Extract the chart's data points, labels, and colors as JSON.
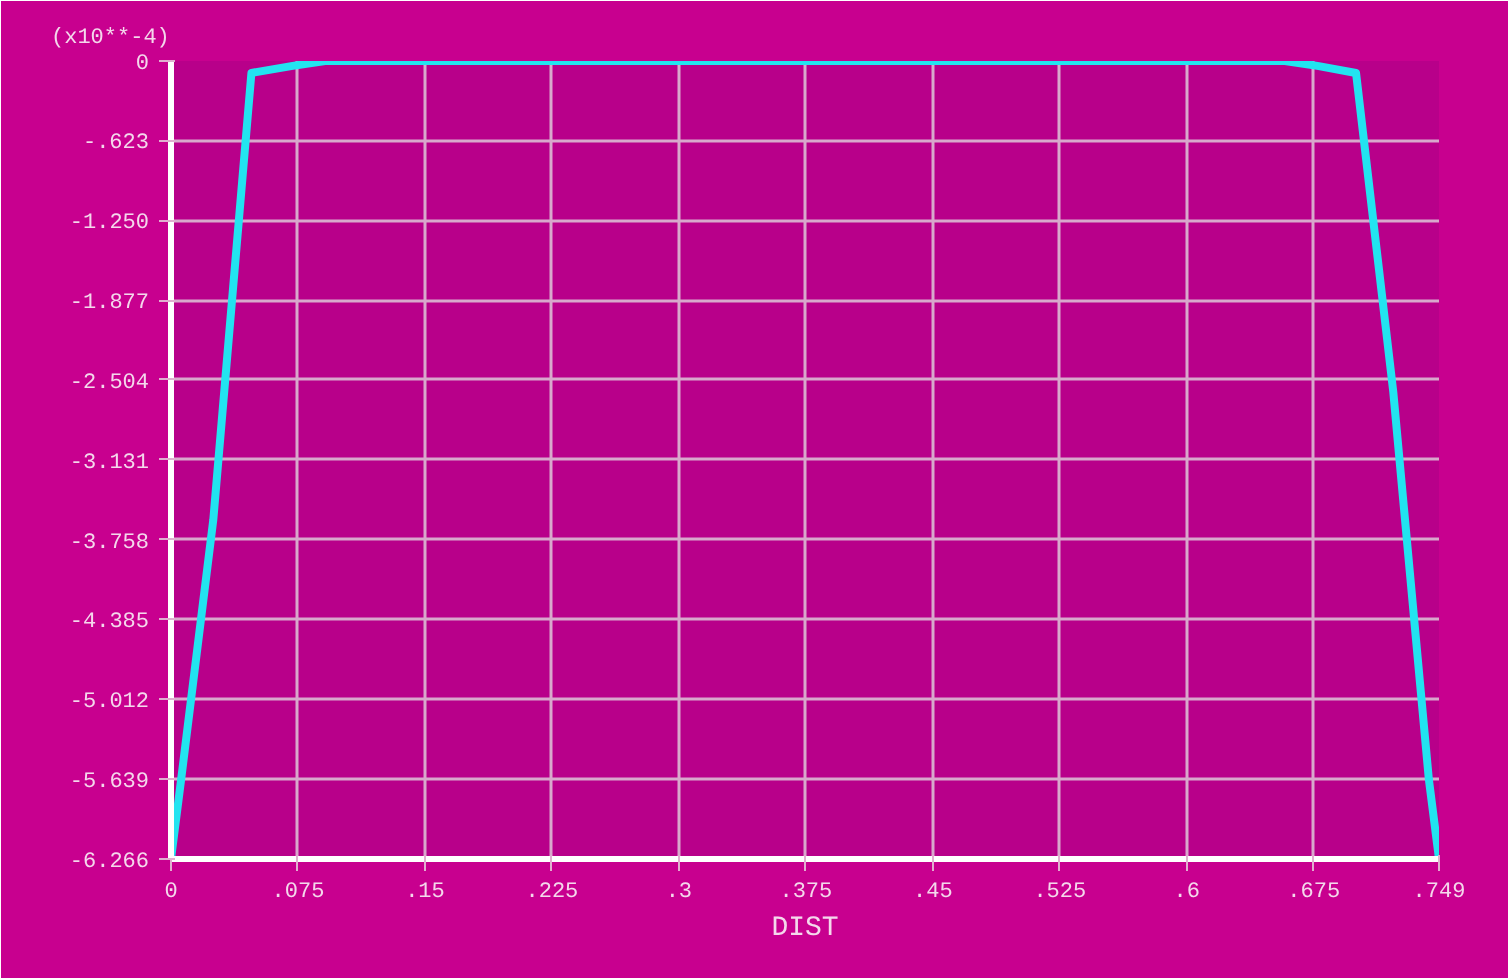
{
  "chart_data": {
    "type": "line",
    "xlabel": "DIST",
    "ylabel": "(x10**-4)",
    "series": [
      {
        "color": "#22e4f0",
        "x": [
          0,
          0.006,
          0.025,
          0.0475,
          0.071,
          0.091,
          0.2,
          0.4,
          0.6,
          0.658,
          0.678,
          0.7,
          0.722,
          0.743,
          0.749
        ],
        "values": [
          -6.266,
          -5.64,
          -3.6,
          -0.094,
          -0.04,
          0,
          0,
          0,
          0,
          0,
          -0.04,
          -0.094,
          -2.6,
          -5.64,
          -6.266
        ]
      }
    ],
    "xlim": [
      0,
      0.749
    ],
    "ylim": [
      -6.266,
      0
    ],
    "xticks": [
      0,
      {
        "value": 0.075,
        "label": ".075"
      },
      {
        "value": 0.15,
        "label": ".15"
      },
      {
        "value": 0.225,
        "label": ".225"
      },
      {
        "value": 0.3,
        "label": ".3"
      },
      {
        "value": 0.375,
        "label": ".375"
      },
      {
        "value": 0.45,
        "label": ".45"
      },
      {
        "value": 0.525,
        "label": ".525"
      },
      {
        "value": 0.6,
        "label": ".6"
      },
      {
        "value": 0.675,
        "label": ".675"
      },
      {
        "value": 0.749,
        "label": ".749"
      }
    ],
    "yticks": [
      0,
      {
        "value": -0.623,
        "label": "-.623"
      },
      {
        "value": -1.25,
        "label": "-1.250"
      },
      {
        "value": -1.877,
        "label": "-1.877"
      },
      {
        "value": -2.504,
        "label": "-2.504"
      },
      {
        "value": -3.131,
        "label": "-3.131"
      },
      {
        "value": -3.758,
        "label": "-3.758"
      },
      {
        "value": -4.385,
        "label": "-4.385"
      },
      {
        "value": -5.012,
        "label": "-5.012"
      },
      {
        "value": -5.639,
        "label": "-5.639"
      },
      {
        "value": -6.266,
        "label": "-6.266"
      }
    ],
    "grid": true,
    "marker": "none",
    "line_style": "solid"
  }
}
